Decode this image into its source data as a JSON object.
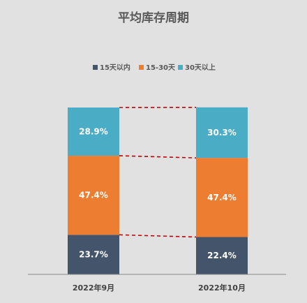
{
  "chart_data": {
    "type": "bar",
    "stacked": true,
    "percent": true,
    "title": "平均库存周期",
    "categories": [
      "2022年9月",
      "2022年10月"
    ],
    "series": [
      {
        "name": "15天以内",
        "color": "#44546a",
        "values": [
          23.7,
          22.4
        ],
        "labels": [
          "23.7%",
          "22.4%"
        ]
      },
      {
        "name": "15-30天",
        "color": "#ed7d31",
        "values": [
          47.4,
          47.4
        ],
        "labels": [
          "47.4%",
          "47.4%"
        ]
      },
      {
        "name": "30天以上",
        "color": "#4bacc6",
        "values": [
          28.9,
          30.3
        ],
        "labels": [
          "28.9%",
          "30.3%"
        ]
      }
    ],
    "ylim": [
      0,
      100
    ],
    "legend_position": "top",
    "series_lines": true,
    "series_line_color": "#c00000",
    "grid": false
  }
}
